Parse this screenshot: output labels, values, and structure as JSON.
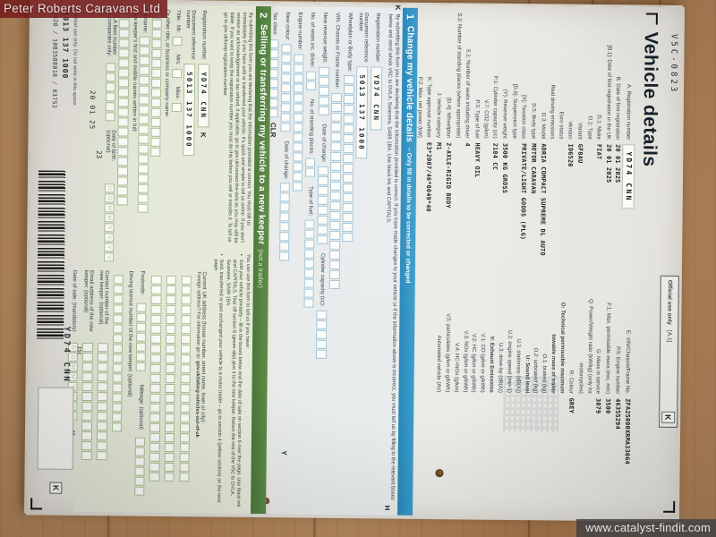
{
  "scene": {
    "dealer_label": "Peter Roberts Caravans Ltd",
    "watermark": "www.catalyst-findit.com",
    "wood_color": "#ad7f53",
    "label_bg": "#761c1c",
    "section1_color": "#2e93c6",
    "section2_color": "#4f7e3e"
  },
  "doc": {
    "form_code": "V5C-0823",
    "official_use": {
      "label": "Official use only",
      "ref": "[A.1]",
      "mark": "K"
    },
    "vehicle_details": {
      "title": "Vehicle details",
      "left_rows": [
        {
          "label": "A. Registration number",
          "value": "YD74 CNN",
          "style": "plate"
        },
        {
          "label": "B. Date of first registration",
          "value": "20 01 2025"
        },
        {
          "label": "[B.1]: Date of first registration in the UK",
          "value": "20 01 2025"
        },
        {
          "label": "D.1: Make",
          "value": "FIAT"
        },
        {
          "label": "D.2: Type",
          "value": ""
        },
        {
          "label": "Variant",
          "value": "GF8AU"
        },
        {
          "label": "Version",
          "value": "ID6520"
        },
        {
          "label": "Euro status",
          "value": ""
        },
        {
          "label": "Real driving emissions",
          "value": ""
        },
        {
          "label": "D.3: Model",
          "value": "ADRIA COMPACT SUPREME DL AUTO"
        },
        {
          "label": "D.5: Body type",
          "value": "MOTOR CARAVAN"
        },
        {
          "label": "[X]: Taxation class",
          "value": "PRIVATE/LIGHT GOODS (PLG)"
        },
        {
          "label": "[D.6]: Suspension type",
          "value": ""
        },
        {
          "label": "(Y): Revenue weight",
          "value": "3500 KG GROSS"
        },
        {
          "label": "P.1: Cylinder capacity (cc)",
          "value": "2184 CC"
        },
        {
          "label": "V.7: CO2 (g/km)",
          "value": ""
        },
        {
          "label": "P.3: Type of fuel",
          "value": "HEAVY OIL"
        },
        {
          "label": "S.1: Number of seats including driver",
          "value": "4"
        },
        {
          "label": "S.2: Number of standing places (where appropriate)",
          "value": ""
        },
        {
          "label": "[D.4]: Wheelplan",
          "value": "2-AXLE-RIGID BODY"
        },
        {
          "label": "J: Vehicle category",
          "value": "M1"
        },
        {
          "label": "K: Type approval number",
          "value": "E3*2007/46*0049*40"
        },
        {
          "label": "P.2: Max. net power (kW)",
          "value": ""
        }
      ],
      "right_rows": [
        {
          "label": "E: VIN/Chassis/Frame No.",
          "value": "ZFA25000XRMA33064"
        },
        {
          "label": "P.5: Engine number",
          "value": "46355294"
        },
        {
          "label": "F.1: Max. permissible mass (exc. m/c)",
          "value": "3500"
        },
        {
          "label": "G: Mass in service",
          "value": "3079"
        },
        {
          "label": "Q: Power/Weight ratio (kW/kg) (only for motorcycles)",
          "value": ""
        },
        {
          "label": "R: Colour",
          "value": "GREY"
        },
        {
          "label": "O: Technical permissible maximum towable mass of trailer",
          "value": "",
          "header": true
        },
        {
          "label": "O.1: braked (kg)",
          "value": ""
        },
        {
          "label": "O.2: unbraked (kg)",
          "value": ""
        },
        {
          "label": "U: Sound level",
          "value": "",
          "header": true
        },
        {
          "label": "U.1: stationary (dB(A))",
          "value": ""
        },
        {
          "label": "U.2: engine speed (min-1)",
          "value": ""
        },
        {
          "label": "U.3: drive-by (dB(A))",
          "value": ""
        },
        {
          "label": "V: Exhaust Emissions",
          "value": "",
          "header": true
        },
        {
          "label": "V.1: CO (g/km or g/kWh)",
          "value": ""
        },
        {
          "label": "V.2: HC (g/km or g/kWh)",
          "value": ""
        },
        {
          "label": "V.3: NOx (g/km or g/kWh)",
          "value": ""
        },
        {
          "label": "V.4: HC+NOx (g/km)",
          "value": ""
        },
        {
          "label": "V.5: particulates (g/km or g/kWh)",
          "value": ""
        },
        {
          "label": "Automated vehicle (AV)",
          "value": ""
        }
      ]
    },
    "section1": {
      "num": "1",
      "title": "Change my vehicle details",
      "subtitle": "– Only fill in details to be corrected or changed",
      "intro": "By submitting this form you are declaring that the information provided is correct. If you have made changes to your vehicle or if the information above is incorrect, you must tell us by filling in the relevant boxes below and send whole V5C to DVLA, Swansea, SA99 1BA. Use black ink and CAPITALS.",
      "labels": {
        "reg": "Registration number",
        "docref": "Document reference number",
        "wheelplan": "Wheelplan or Body type:",
        "vin": "VIN, Chassis or Frame number:",
        "revenue": "New revenue weight:",
        "date_change": "Date of change:",
        "cylinder": "Cylinder capacity (cc):",
        "seats": "No. of seats inc. driver:",
        "standing": "No. of standing places:",
        "fuel": "Type of fuel:",
        "engine": "Engine number:",
        "colour": "New colour:",
        "tax": "Tax class:",
        "clr": "CLR"
      },
      "values": {
        "reg": "YD74 CNN",
        "docref": "5013 137 1000"
      },
      "footer_text": "For information on how to change your tax class go to ",
      "footer_link": "gov.uk/change-vehicle-tax-class"
    },
    "section2": {
      "num": "2",
      "title": "Selling or transferring my vehicle to a new keeper",
      "suffix": "(not a trader)",
      "intro": "By submitting this form you are declaring that the information provided is correct. You must tell us immediately if you have sold or transferred your vehicle. It's quick and simple to tell us online. If you don't receive an acknowledgement or tax refund, if applicable, go to gov.uk/contact-the-dvla as you may still be liable. If you want to keep the registration number you must do this before you sell or transfer it. To tell us go to gov.uk/keep-registration-number",
      "use_intro": "You can use this form to tell us if you have:",
      "bullet1": "Sold your vehicle privately – fill in the boxes below and the date of sale on section 6 over the page. Use black ink and CAPITALS. Tear off section 6 (green slip) give it to the new keeper. Return the rest of the V5C to DVLA, Swansea, SA99 1BA.",
      "bullet2": "Sold, transferred or part exchanged your vehicle to a motor trader – go to section 4 (yellow section) on the next page.",
      "labels": {
        "reg": "Registration number",
        "docref": "Document reference number",
        "title": "Title:",
        "mr": "Mr:",
        "mrs": "Mrs:",
        "miss": "Miss:",
        "other": "Or other title, or business or company name:",
        "surname": "Surname:",
        "firstnames": "New keeper's first and middle names written in full:",
        "fleet": "DVLA fleet number for companies only:",
        "dob": "Date of birth: (optional)",
        "address": "Current UK address (house number, street name, town or city):",
        "foreign": "Foreign address? For information go to: ",
        "foreign_link": "gov.uk/taking-vehicles-out-of-uk",
        "postcode": "Postcode:",
        "mileage": "Mileage: (optional)",
        "licence": "Driving licence number of the new keeper: (optional)",
        "contact": "Contact number of the new keeper: (optional)",
        "email": "Email address of the new keeper: (optional)",
        "sale": "Date of sale: (mandatory)"
      },
      "values": {
        "reg": "YD74 CNN",
        "docref": "5013 137 1000"
      },
      "date_ghost": "DDMMYYYY"
    },
    "marks": {
      "k1": "K",
      "h": "H",
      "y": "Y",
      "k2": "K",
      "k3": "K"
    },
    "footer": {
      "official": "Official use only. Do not write in this space.",
      "barcode_number": "5013 137 1000",
      "serial": "1828 / 1083588018 / 03752",
      "date_code": "20 01 25",
      "batch": "23",
      "reg": "YD74 CNN",
      "isc": "ISC",
      "mark": "K"
    }
  }
}
